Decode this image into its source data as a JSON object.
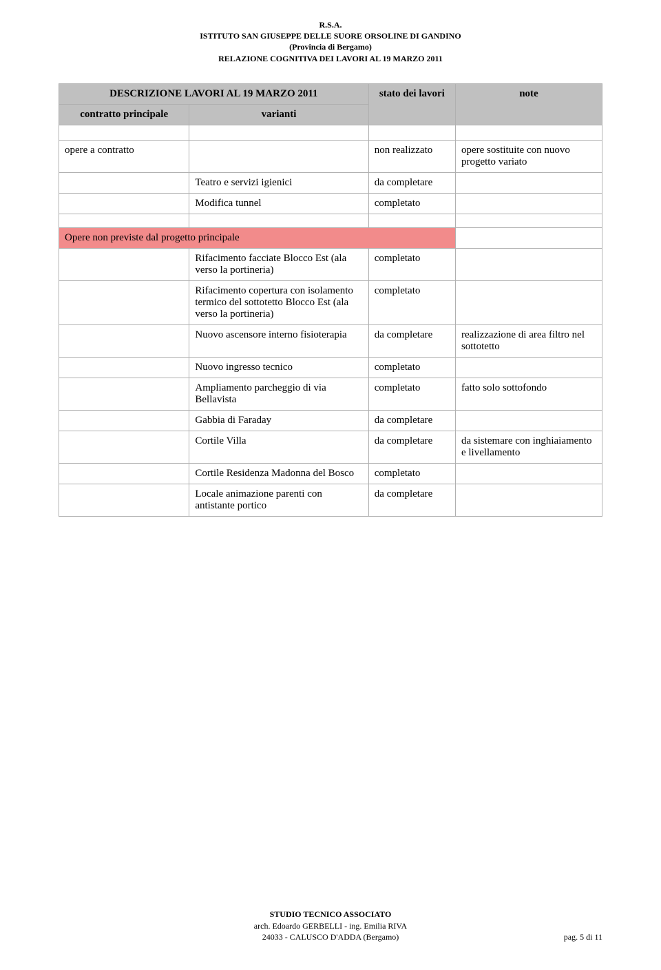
{
  "header": {
    "line1": "R.S.A.",
    "line2": "ISTITUTO SAN GIUSEPPE DELLE SUORE ORSOLINE DI GANDINO",
    "line3": "(Provincia di Bergamo)",
    "line4": "RELAZIONE COGNITIVA DEI LAVORI AL 19 MARZO 2011"
  },
  "table": {
    "group_header": "DESCRIZIONE LAVORI AL 19 MARZO 2011",
    "col_contratto": "contratto principale",
    "col_varianti": "varianti",
    "col_stato": "stato dei lavori",
    "col_note": "note",
    "rows": {
      "r1": {
        "contratto": "opere a contratto",
        "varianti": "",
        "stato": "non realizzato",
        "note": "opere sostituite con nuovo progetto variato"
      },
      "r2": {
        "contratto": "",
        "varianti": "Teatro e servizi igienici",
        "stato": "da completare",
        "note": ""
      },
      "r3": {
        "contratto": "",
        "varianti": "Modifica tunnel",
        "stato": "completato",
        "note": ""
      },
      "section": "Opere non previste dal progetto principale",
      "r4": {
        "contratto": "",
        "varianti": "Rifacimento facciate Blocco Est (ala verso la portineria)",
        "stato": "completato",
        "note": ""
      },
      "r5": {
        "contratto": "",
        "varianti": "Rifacimento copertura con isolamento termico del sottotetto Blocco Est (ala verso la portineria)",
        "stato": "completato",
        "note": ""
      },
      "r6": {
        "contratto": "",
        "varianti": "Nuovo ascensore interno fisioterapia",
        "stato": "da completare",
        "note": "realizzazione di area filtro nel sottotetto"
      },
      "r7": {
        "contratto": "",
        "varianti": "Nuovo ingresso tecnico",
        "stato": "completato",
        "note": ""
      },
      "r8": {
        "contratto": "",
        "varianti": "Ampliamento parcheggio di via Bellavista",
        "stato": "completato",
        "note": "fatto solo sottofondo"
      },
      "r9": {
        "contratto": "",
        "varianti": "Gabbia di Faraday",
        "stato": "da completare",
        "note": ""
      },
      "r10": {
        "contratto": "",
        "varianti": "Cortile Villa",
        "stato": "da completare",
        "note": "da sistemare con inghiaiamento e livellamento"
      },
      "r11": {
        "contratto": "",
        "varianti": "Cortile Residenza Madonna del Bosco",
        "stato": "completato",
        "note": ""
      },
      "r12": {
        "contratto": "",
        "varianti": "Locale animazione parenti con antistante portico",
        "stato": "da completare",
        "note": ""
      }
    }
  },
  "footer": {
    "line1": "STUDIO TECNICO ASSOCIATO",
    "line2": "arch. Edoardo GERBELLI - ing. Emilia RIVA",
    "line3": "24033 - CALUSCO D'ADDA (Bergamo)",
    "page": "pag. 5 di 11"
  }
}
